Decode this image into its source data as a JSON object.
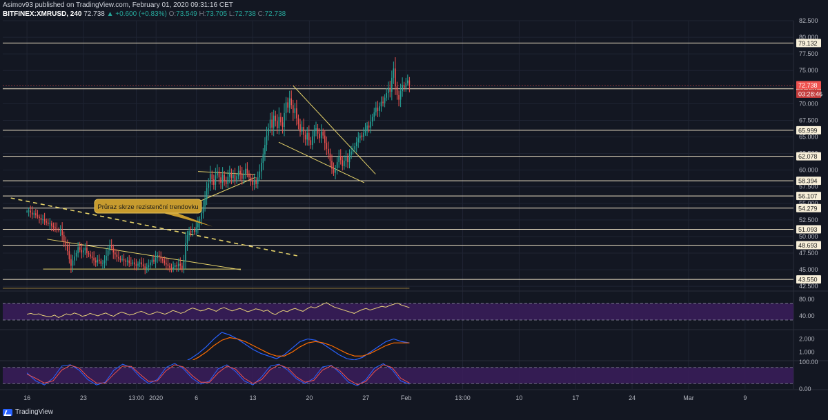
{
  "header": {
    "line1": "Asimov93 published on TradingView.com, February 01, 2020 09:31:16 CET",
    "symbol": "BITFINEX:XMRUSD, 240",
    "last": "72.738",
    "change": "▲ +0.600 (+0.83%)",
    "o_label": "O:",
    "o": "73.549",
    "h_label": "H:",
    "h": "73.705",
    "l_label": "L:",
    "l": "72.738",
    "c_label": "C:",
    "c": "72.738"
  },
  "footer": {
    "brand": "TradingView"
  },
  "colors": {
    "background": "#131722",
    "grid": "#1f2433",
    "bull": "#26a69a",
    "bear": "#ef5350",
    "level": "#f2e6c9",
    "trend": "#e6d36a",
    "price_tag": "#ef5350",
    "rsi_fill": "#3b1d5c",
    "macd_line": "#2962ff",
    "signal_line": "#ff6d00"
  },
  "annotation": {
    "text": "Průraz skrze rezistenční trendovku"
  },
  "chart_data": {
    "type": "candlestick",
    "symbol": "BITFINEX:XMRUSD",
    "timeframe": "240",
    "price_axis": {
      "ylim": [
        42.0,
        82.5
      ],
      "ticks": [
        "82.500",
        "80.000",
        "77.500",
        "75.000",
        "72.500",
        "70.000",
        "67.500",
        "65.000",
        "62.500",
        "60.000",
        "57.500",
        "55.000",
        "52.500",
        "50.000",
        "47.500",
        "45.000",
        "42.500"
      ]
    },
    "time_axis": {
      "labels": [
        "16",
        "23",
        "13:00",
        "2020",
        "6",
        "13",
        "20",
        "27",
        "Feb",
        "13:00",
        "10",
        "17",
        "24",
        "Mar",
        "9"
      ],
      "label_days": [
        0,
        7,
        13.55,
        16,
        21,
        28,
        35,
        42,
        47,
        54,
        61,
        68,
        75,
        82,
        89
      ],
      "last_bar_day": 47.4
    },
    "candles_close": [
      53.8,
      53.9,
      53.6,
      53.3,
      53.5,
      53.2,
      53.0,
      52.8,
      52.5,
      52.6,
      52.3,
      52.1,
      51.9,
      52.0,
      51.6,
      51.4,
      51.2,
      51.0,
      50.9,
      51.1,
      50.2,
      49.3,
      48.6,
      47.8,
      46.6,
      45.6,
      46.4,
      47.0,
      47.5,
      48.4,
      48.0,
      47.6,
      47.9,
      48.3,
      47.5,
      47.3,
      47.0,
      46.8,
      46.4,
      46.1,
      46.5,
      46.3,
      45.9,
      46.0,
      46.4,
      47.1,
      47.9,
      48.7,
      48.3,
      47.6,
      47.3,
      46.9,
      46.7,
      46.5,
      46.6,
      46.4,
      46.2,
      46.4,
      46.0,
      45.9,
      46.1,
      45.8,
      45.6,
      45.9,
      46.1,
      45.8,
      45.5,
      45.2,
      45.4,
      45.7,
      46.1,
      46.5,
      46.2,
      46.8,
      47.2,
      46.9,
      46.6,
      46.4,
      46.0,
      45.8,
      45.6,
      45.3,
      45.1,
      45.4,
      45.7,
      45.5,
      45.9,
      45.6,
      45.2,
      46.3,
      49.0,
      50.2,
      50.8,
      50.6,
      51.0,
      50.7,
      51.4,
      52.0,
      52.6,
      53.5,
      54.5,
      55.6,
      57.3,
      58.0,
      59.4,
      58.6,
      57.8,
      59.2,
      59.8,
      58.9,
      58.1,
      59.3,
      58.4,
      57.9,
      59.0,
      59.6,
      58.8,
      59.3,
      58.5,
      59.1,
      59.9,
      59.4,
      58.7,
      59.4,
      60.2,
      59.5,
      58.9,
      58.5,
      57.8,
      58.4,
      57.9,
      58.9,
      59.8,
      61.1,
      62.4,
      63.8,
      65.2,
      66.3,
      67.6,
      66.4,
      68.2,
      67.4,
      66.3,
      68.0,
      67.2,
      66.5,
      68.6,
      70.2,
      69.4,
      70.8,
      69.8,
      68.6,
      69.3,
      67.8,
      66.9,
      65.8,
      66.5,
      65.3,
      64.6,
      65.6,
      64.5,
      63.8,
      65.1,
      65.9,
      66.3,
      65.5,
      64.8,
      65.8,
      65.2,
      64.1,
      63.2,
      62.5,
      61.4,
      60.2,
      59.6,
      60.3,
      61.2,
      62.1,
      61.5,
      60.6,
      61.4,
      62.0,
      61.2,
      62.3,
      62.8,
      63.1,
      63.6,
      64.2,
      64.8,
      65.2,
      65.0,
      65.6,
      66.1,
      66.7,
      66.4,
      67.3,
      68.0,
      68.7,
      69.4,
      68.9,
      69.6,
      70.3,
      70.1,
      70.9,
      71.6,
      72.4,
      71.8,
      73.9,
      75.3,
      72.6,
      71.3,
      70.6,
      71.9,
      72.8,
      72.4,
      73.1,
      73.5,
      72.738
    ],
    "horizontal_levels": [
      {
        "value": 79.132,
        "label": "79.132"
      },
      {
        "value": 72.246,
        "label": "72.246"
      },
      {
        "value": 65.999,
        "label": "65.999"
      },
      {
        "value": 62.078,
        "label": "62.078"
      },
      {
        "value": 58.394,
        "label": "58.394"
      },
      {
        "value": 56.107,
        "label": "56.107"
      },
      {
        "value": 54.279,
        "label": "54.279"
      },
      {
        "value": 51.093,
        "label": "51.093"
      },
      {
        "value": 48.693,
        "label": "48.693"
      },
      {
        "value": 43.55,
        "label": "43.550"
      }
    ],
    "last_price": {
      "value": 72.738,
      "label": "72.738",
      "countdown": "03:28:46"
    },
    "trendlines": [
      {
        "style": "dashed",
        "from": [
          -2,
          55.8
        ],
        "to": [
          33.5,
          47.1
        ]
      },
      {
        "style": "solid",
        "from": [
          2.5,
          49.6
        ],
        "to": [
          26.5,
          45.0
        ]
      },
      {
        "style": "solid",
        "from": [
          2.0,
          45.1
        ],
        "to": [
          26.5,
          45.1
        ]
      },
      {
        "style": "solid",
        "from": [
          21.2,
          59.8
        ],
        "to": [
          28.3,
          59.3
        ]
      },
      {
        "style": "solid",
        "from": [
          21.2,
          55.2
        ],
        "to": [
          28.3,
          58.9
        ]
      },
      {
        "style": "solid",
        "from": [
          33.0,
          72.7
        ],
        "to": [
          43.2,
          59.4
        ]
      },
      {
        "style": "solid",
        "from": [
          31.2,
          64.2
        ],
        "to": [
          41.8,
          58.1
        ]
      }
    ],
    "annotation_anchor": [
      23.0,
      51.5
    ],
    "rsi": {
      "axis_ticks": [
        "80.00",
        "40.00"
      ],
      "band": [
        70,
        30
      ],
      "values": [
        44,
        46,
        43,
        45,
        41,
        39,
        38,
        42,
        36,
        40,
        45,
        42,
        47,
        44,
        39,
        41,
        46,
        43,
        40,
        44,
        47,
        42,
        39,
        45,
        49,
        46,
        42,
        44,
        48,
        51,
        47,
        43,
        46,
        50,
        47,
        44,
        48,
        53,
        50,
        46,
        49,
        55,
        59,
        56,
        52,
        54,
        58,
        55,
        51,
        57,
        60,
        56,
        52,
        55,
        58,
        54,
        50,
        53,
        57,
        55,
        51,
        54,
        47,
        43,
        49,
        53,
        50,
        55,
        58,
        54,
        51,
        57,
        62,
        59,
        63,
        68,
        72,
        66,
        61,
        58,
        55,
        52,
        49,
        46,
        51,
        55,
        58,
        54,
        57,
        60,
        63,
        61,
        65,
        68,
        71,
        66,
        63,
        60
      ]
    },
    "macd": {
      "axis_ticks": [
        "2.000",
        "1.000"
      ],
      "macd": [
        0.2,
        0.5,
        0.9,
        1.4,
        2.0,
        2.5,
        2.3,
        2.0,
        1.6,
        1.2,
        0.9,
        0.7,
        0.5,
        0.8,
        1.3,
        1.8,
        2.0,
        1.9,
        1.6,
        1.2,
        0.8,
        0.5,
        0.4,
        0.6,
        1.0,
        1.4,
        1.8,
        2.0,
        1.8,
        1.7
      ],
      "signal": [
        0.1,
        0.3,
        0.6,
        1.0,
        1.5,
        1.9,
        2.1,
        2.0,
        1.8,
        1.5,
        1.2,
        0.9,
        0.7,
        0.7,
        1.0,
        1.4,
        1.7,
        1.8,
        1.7,
        1.5,
        1.2,
        0.9,
        0.7,
        0.7,
        0.9,
        1.2,
        1.5,
        1.7,
        1.7,
        1.7
      ]
    },
    "stoch": {
      "axis_ticks": [
        "100.00",
        "0.00"
      ],
      "band": [
        80,
        20
      ],
      "k": [
        60,
        30,
        15,
        40,
        85,
        90,
        70,
        35,
        15,
        25,
        70,
        92,
        80,
        45,
        20,
        35,
        80,
        95,
        75,
        40,
        18,
        30,
        75,
        90,
        65,
        30,
        15,
        45,
        85,
        92,
        70,
        38,
        20,
        40,
        82,
        88,
        60,
        25,
        12,
        35,
        78,
        94,
        72,
        30,
        18
      ],
      "d": [
        55,
        40,
        22,
        30,
        70,
        88,
        78,
        45,
        22,
        22,
        55,
        85,
        84,
        55,
        28,
        30,
        68,
        90,
        82,
        50,
        25,
        25,
        60,
        85,
        74,
        40,
        20,
        35,
        72,
        90,
        78,
        45,
        25,
        32,
        70,
        86,
        68,
        35,
        16,
        28,
        65,
        90,
        80,
        40,
        22
      ]
    }
  }
}
